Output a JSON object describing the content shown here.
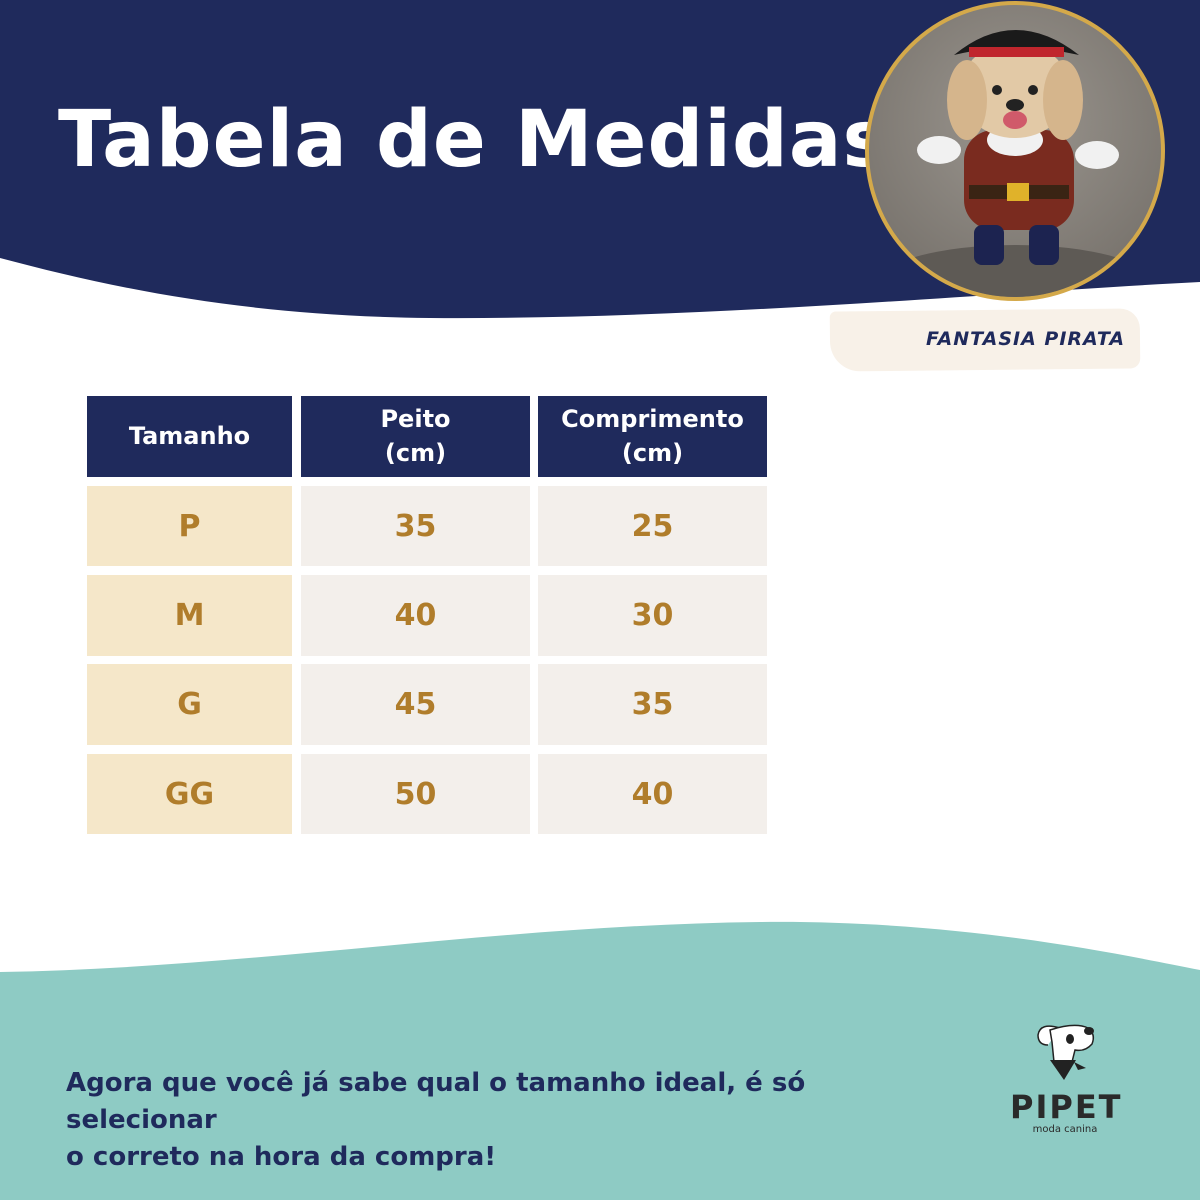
{
  "header": {
    "title": "Tabela de Medidas"
  },
  "product": {
    "label": "FANTASIA PIRATA",
    "image": "dog-pirate-costume-photo"
  },
  "table": {
    "headers": [
      "Tamanho",
      "Peito\n(cm)",
      "Comprimento\n(cm)"
    ],
    "header_lines": [
      [
        "Tamanho"
      ],
      [
        "Peito",
        "(cm)"
      ],
      [
        "Comprimento",
        "(cm)"
      ]
    ],
    "rows": [
      {
        "size": "P",
        "peito": "35",
        "comprimento": "25"
      },
      {
        "size": "M",
        "peito": "40",
        "comprimento": "30"
      },
      {
        "size": "G",
        "peito": "45",
        "comprimento": "35"
      },
      {
        "size": "GG",
        "peito": "50",
        "comprimento": "40"
      }
    ]
  },
  "footer": {
    "line1": "Agora que você já sabe qual o tamanho ideal, é só selecionar",
    "line2": "o correto na hora da compra!"
  },
  "logo": {
    "brand": "PIPET",
    "tagline": "moda canina"
  },
  "colors": {
    "navy": "#1f2a5c",
    "teal": "#8ecbc4",
    "gold": "#b07d2b",
    "cream": "#f5e7c9",
    "light": "#f3efeb",
    "border": "#d4a94a"
  }
}
